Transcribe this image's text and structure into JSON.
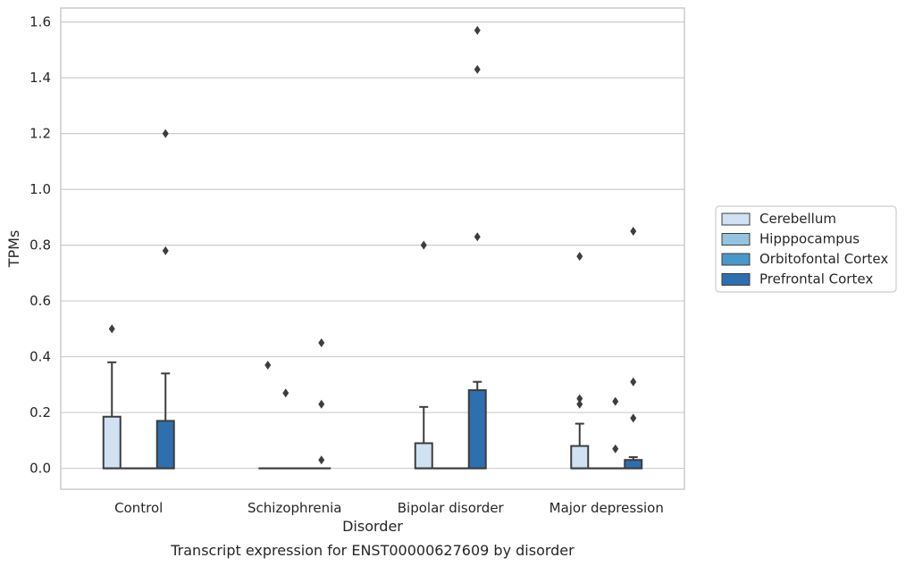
{
  "caption": "Transcript expression for ENST00000627609 by disorder",
  "chart_data": {
    "type": "box",
    "xlabel": "Disorder",
    "ylabel": "TPMs",
    "categories": [
      "Control",
      "Schizophrenia",
      "Bipolar disorder",
      "Major depression"
    ],
    "ylim": [
      -0.075,
      1.65
    ],
    "yticks": [
      0.0,
      0.2,
      0.4,
      0.6,
      0.8,
      1.0,
      1.2,
      1.4,
      1.6
    ],
    "ytick_labels": [
      "0.0",
      "0.2",
      "0.4",
      "0.6",
      "0.8",
      "1.0",
      "1.2",
      "1.4",
      "1.6"
    ],
    "grid": "horizontal",
    "legend_position": "right",
    "series": [
      {
        "name": "Cerebellum",
        "color": "#d0e1f2",
        "boxes": [
          {
            "q1": 0.0,
            "median": 0.0,
            "q3": 0.185,
            "whisker_low": 0.0,
            "whisker_high": 0.38,
            "outliers": [
              0.5
            ]
          },
          {
            "q1": 0.0,
            "median": 0.0,
            "q3": 0.0,
            "whisker_low": 0.0,
            "whisker_high": 0.0,
            "outliers": [
              0.37
            ]
          },
          {
            "q1": 0.0,
            "median": 0.0,
            "q3": 0.09,
            "whisker_low": 0.0,
            "whisker_high": 0.22,
            "outliers": [
              0.8
            ]
          },
          {
            "q1": 0.0,
            "median": 0.0,
            "q3": 0.08,
            "whisker_low": 0.0,
            "whisker_high": 0.16,
            "outliers": [
              0.76,
              0.25,
              0.23
            ]
          }
        ]
      },
      {
        "name": "Hipppocampus",
        "color": "#94c4df",
        "boxes": [
          {
            "q1": 0.0,
            "median": 0.0,
            "q3": 0.0,
            "whisker_low": 0.0,
            "whisker_high": 0.0,
            "outliers": []
          },
          {
            "q1": 0.0,
            "median": 0.0,
            "q3": 0.0,
            "whisker_low": 0.0,
            "whisker_high": 0.0,
            "outliers": [
              0.27
            ]
          },
          {
            "q1": 0.0,
            "median": 0.0,
            "q3": 0.0,
            "whisker_low": 0.0,
            "whisker_high": 0.0,
            "outliers": []
          },
          {
            "q1": 0.0,
            "median": 0.0,
            "q3": 0.0,
            "whisker_low": 0.0,
            "whisker_high": 0.0,
            "outliers": []
          }
        ]
      },
      {
        "name": "Orbitofontal Cortex",
        "color": "#4a98c9",
        "boxes": [
          {
            "q1": 0.0,
            "median": 0.0,
            "q3": 0.0,
            "whisker_low": 0.0,
            "whisker_high": 0.0,
            "outliers": []
          },
          {
            "q1": 0.0,
            "median": 0.0,
            "q3": 0.0,
            "whisker_low": 0.0,
            "whisker_high": 0.0,
            "outliers": []
          },
          {
            "q1": 0.0,
            "median": 0.0,
            "q3": 0.0,
            "whisker_low": 0.0,
            "whisker_high": 0.0,
            "outliers": []
          },
          {
            "q1": 0.0,
            "median": 0.0,
            "q3": 0.0,
            "whisker_low": 0.0,
            "whisker_high": 0.0,
            "outliers": [
              0.24,
              0.07
            ]
          }
        ]
      },
      {
        "name": "Prefrontal Cortex",
        "color": "#2e6faf",
        "boxes": [
          {
            "q1": 0.0,
            "median": 0.0,
            "q3": 0.17,
            "whisker_low": 0.0,
            "whisker_high": 0.34,
            "outliers": [
              1.2,
              0.78
            ]
          },
          {
            "q1": 0.0,
            "median": 0.0,
            "q3": 0.0,
            "whisker_low": 0.0,
            "whisker_high": 0.0,
            "outliers": [
              0.45,
              0.23,
              0.03
            ]
          },
          {
            "q1": 0.0,
            "median": 0.0,
            "q3": 0.28,
            "whisker_low": 0.0,
            "whisker_high": 0.31,
            "outliers": [
              1.57,
              1.43,
              0.83
            ]
          },
          {
            "q1": 0.0,
            "median": 0.0,
            "q3": 0.03,
            "whisker_low": 0.0,
            "whisker_high": 0.04,
            "outliers": [
              0.85,
              0.31,
              0.18
            ]
          }
        ]
      }
    ]
  }
}
